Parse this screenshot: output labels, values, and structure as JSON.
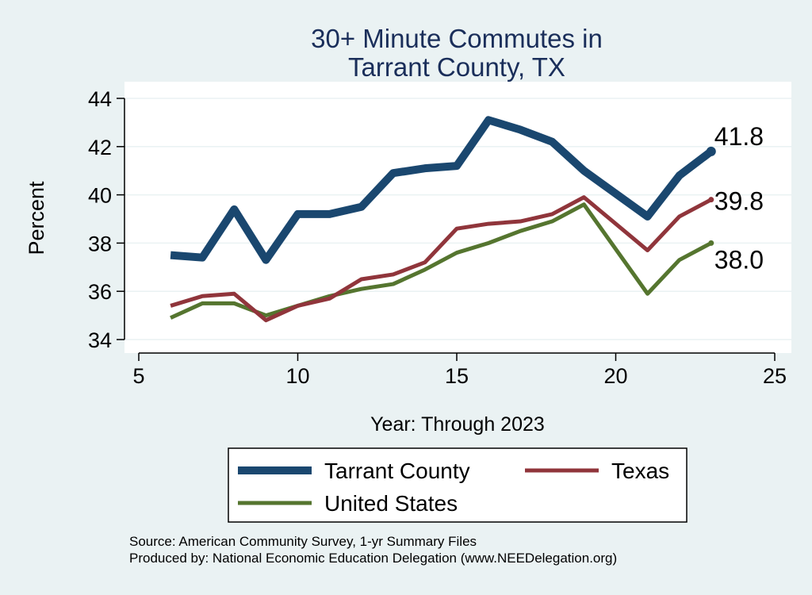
{
  "chart_data": {
    "type": "line",
    "title": [
      "30+ Minute Commutes in",
      "Tarrant County, TX"
    ],
    "xlabel": "Year: Through 2023",
    "ylabel": "Percent",
    "xlim": [
      5,
      25
    ],
    "ylim": [
      34,
      44
    ],
    "xticks": [
      5,
      10,
      15,
      20,
      25
    ],
    "yticks": [
      34,
      36,
      38,
      40,
      42,
      44
    ],
    "grid": true,
    "x": [
      6,
      7,
      8,
      9,
      10,
      11,
      12,
      13,
      14,
      15,
      16,
      17,
      18,
      19,
      21,
      22,
      23
    ],
    "series": [
      {
        "name": "Tarrant County",
        "color": "#1A476F",
        "values": [
          37.5,
          37.4,
          39.4,
          37.3,
          39.2,
          39.2,
          39.5,
          40.9,
          41.1,
          41.2,
          43.1,
          42.7,
          42.2,
          41.0,
          39.1,
          40.8,
          41.8
        ],
        "end_label": "41.8"
      },
      {
        "name": "Texas",
        "color": "#90353B",
        "values": [
          35.4,
          35.8,
          35.9,
          34.8,
          35.4,
          35.7,
          36.5,
          36.7,
          37.2,
          38.6,
          38.8,
          38.9,
          39.2,
          39.9,
          37.7,
          39.1,
          39.8
        ],
        "end_label": "39.8"
      },
      {
        "name": "United States",
        "color": "#55752F",
        "values": [
          34.9,
          35.5,
          35.5,
          35.0,
          35.4,
          35.8,
          36.1,
          36.3,
          36.9,
          37.6,
          38.0,
          38.5,
          38.9,
          39.6,
          35.9,
          37.3,
          38.0
        ],
        "end_label": "38.0"
      }
    ],
    "legend": {
      "placement": "bottom",
      "entries": [
        "Tarrant County",
        "Texas",
        "United States"
      ]
    },
    "notes": [
      "Source: American Community Survey, 1-yr Summary Files",
      "Produced by: National Economic Education Delegation (www.NEEDelegation.org)"
    ]
  }
}
